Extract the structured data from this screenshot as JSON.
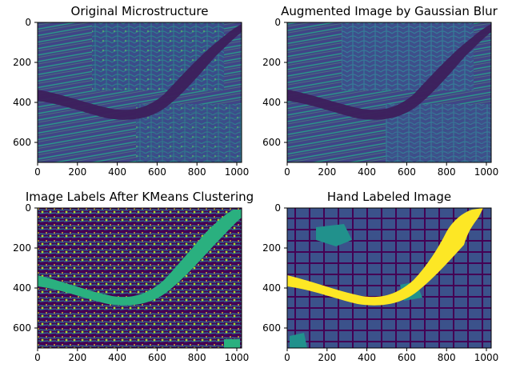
{
  "panels": [
    {
      "title": "Original Microstructure",
      "xticks": [
        "0",
        "200",
        "400",
        "600",
        "800",
        "1000"
      ],
      "yticks": [
        "0",
        "200",
        "400",
        "600"
      ],
      "xlim": [
        0,
        1024
      ],
      "ylim": [
        700,
        0
      ]
    },
    {
      "title": "Augmented Image by Gaussian Blur",
      "xticks": [
        "0",
        "200",
        "400",
        "600",
        "800",
        "1000"
      ],
      "yticks": [
        "0",
        "200",
        "400",
        "600"
      ],
      "xlim": [
        0,
        1024
      ],
      "ylim": [
        700,
        0
      ]
    },
    {
      "title": "Image Labels After KMeans Clustering",
      "xticks": [
        "0",
        "200",
        "400",
        "600",
        "800",
        "1000"
      ],
      "yticks": [
        "0",
        "200",
        "400",
        "600"
      ],
      "xlim": [
        0,
        1024
      ],
      "ylim": [
        700,
        0
      ]
    },
    {
      "title": "Hand Labeled Image",
      "xticks": [
        "0",
        "200",
        "400",
        "600",
        "800",
        "1000"
      ],
      "yticks": [
        "0",
        "200",
        "400",
        "600"
      ],
      "xlim": [
        0,
        1024
      ],
      "ylim": [
        700,
        0
      ]
    }
  ],
  "colors": {
    "viridis_dark": "#440154",
    "viridis_blue": "#3b528b",
    "viridis_teal": "#21918c",
    "viridis_green": "#5ec962",
    "viridis_yellow": "#fde725"
  }
}
